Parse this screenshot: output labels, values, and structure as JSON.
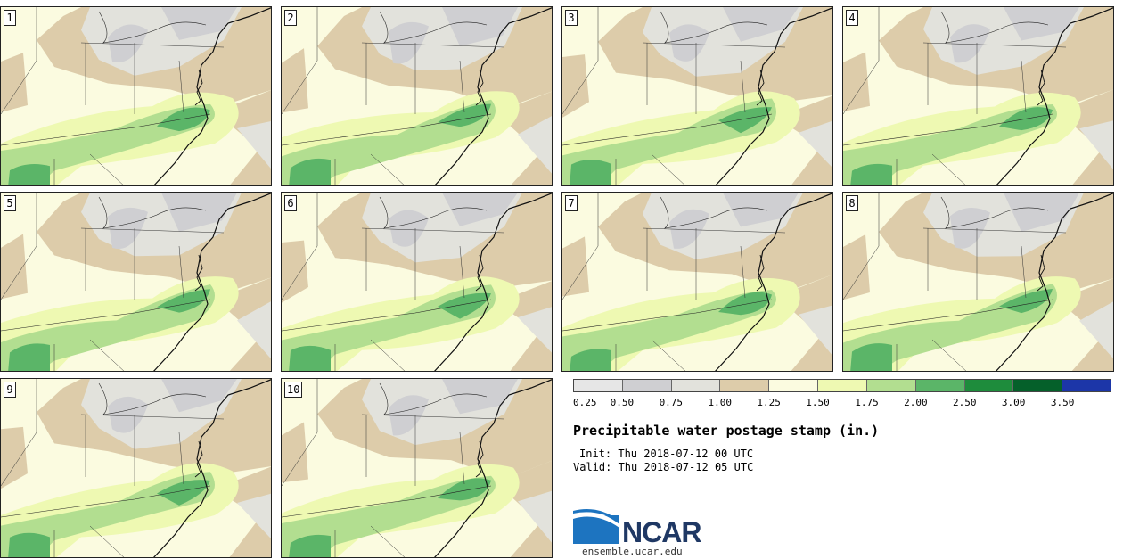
{
  "stamps": [
    {
      "label": "1"
    },
    {
      "label": "2"
    },
    {
      "label": "3"
    },
    {
      "label": "4"
    },
    {
      "label": "5"
    },
    {
      "label": "6"
    },
    {
      "label": "7"
    },
    {
      "label": "8"
    },
    {
      "label": "9"
    },
    {
      "label": "10"
    }
  ],
  "colorbar": {
    "colors": [
      "#e6e6e6",
      "#cfcfd2",
      "#e2e2dc",
      "#ddccaa",
      "#fbfbe0",
      "#eef9b2",
      "#b2de90",
      "#5bb568",
      "#1e8c3c",
      "#05602a",
      "#1c36a8"
    ],
    "ticks": [
      "0.25",
      "0.50",
      "0.75",
      "1.00",
      "1.25",
      "1.50",
      "1.75",
      "2.00",
      "2.50",
      "3.00",
      "3.50"
    ]
  },
  "title": "Precipitable water postage stamp (in.)",
  "init": "Init: Thu 2018-07-12 00 UTC",
  "valid": "Valid: Thu 2018-07-12 05 UTC",
  "logo": {
    "text": "NCAR"
  },
  "site": "ensemble.ucar.edu"
}
